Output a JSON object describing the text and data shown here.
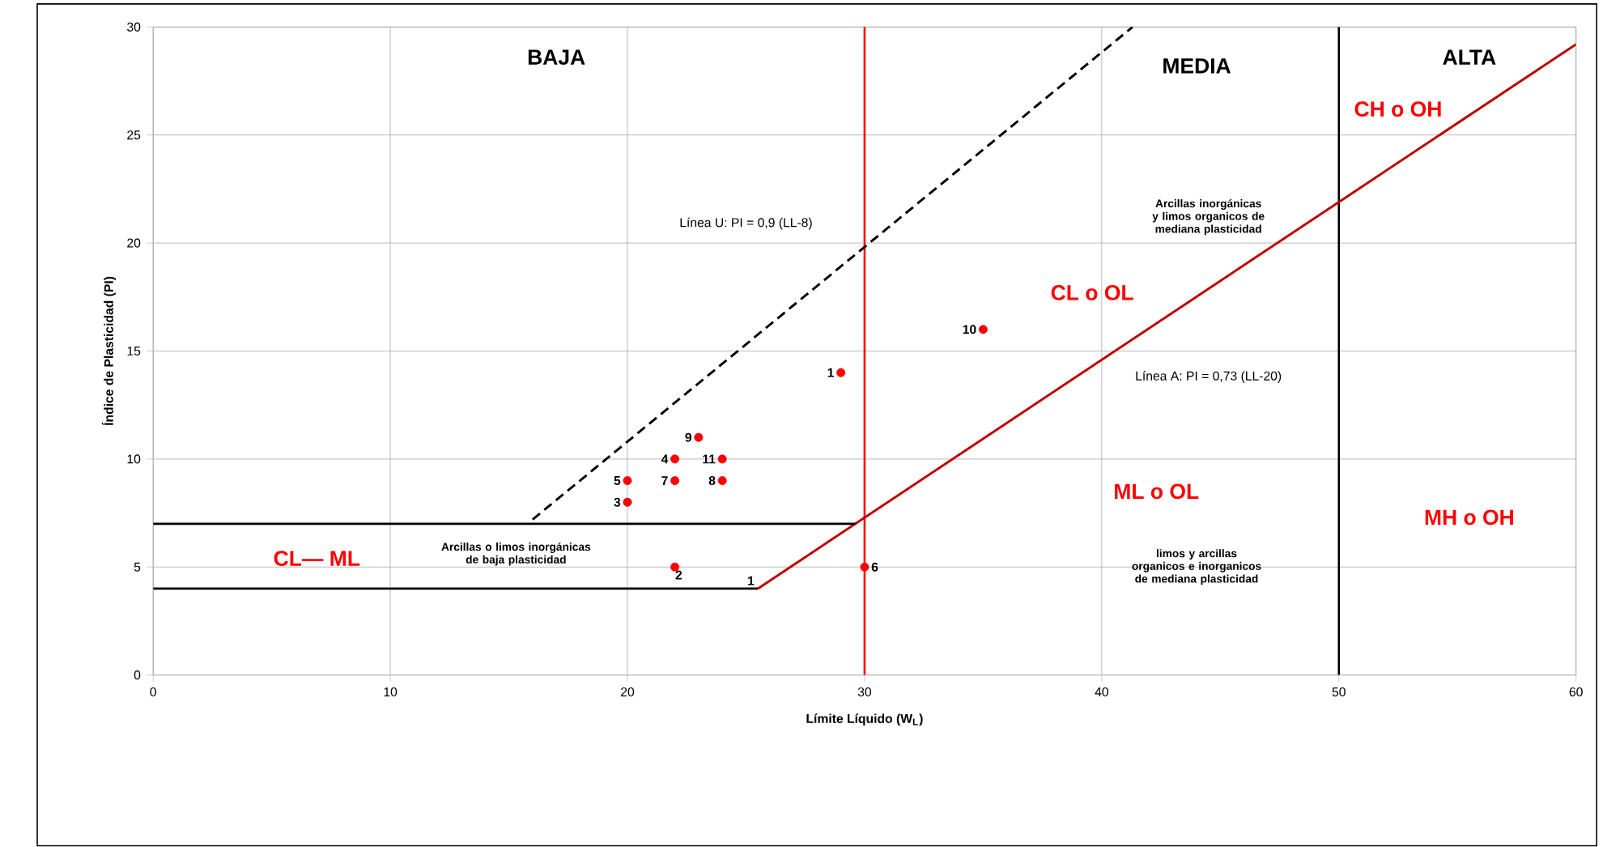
{
  "chart_data": {
    "type": "scatter",
    "xlabel": "Límite Líquido (W$_{L}$)",
    "ylabel": "Índice de Plasticidad (PI)",
    "xlim": [
      0,
      60
    ],
    "ylim": [
      0,
      30
    ],
    "xticks": [
      0,
      10,
      20,
      30,
      40,
      50,
      60
    ],
    "yticks": [
      0,
      5,
      10,
      15,
      20,
      25,
      30
    ],
    "grid": true,
    "series": [
      {
        "type": "line",
        "color": "#000000",
        "line_style": "dashed",
        "marker": "none",
        "x": [
          16,
          41.3
        ],
        "values": [
          7.2,
          30
        ]
      },
      {
        "type": "line",
        "color": "#c00000",
        "line_style": "solid",
        "marker": "none",
        "x": [
          25.5,
          60
        ],
        "values": [
          4,
          29.2
        ]
      },
      {
        "type": "line",
        "color": "#000000",
        "line_style": "solid",
        "marker": "none",
        "x": [
          0,
          29.6
        ],
        "values": [
          7,
          7
        ]
      },
      {
        "type": "line",
        "color": "#000000",
        "line_style": "solid",
        "marker": "none",
        "x": [
          0,
          25.5
        ],
        "values": [
          4,
          4
        ]
      },
      {
        "color": "#ff0000",
        "marker": "circle",
        "x": [
          29,
          22,
          20,
          22,
          20,
          30,
          22,
          24,
          23,
          35,
          24
        ],
        "values": [
          14,
          5,
          8,
          10,
          9,
          5,
          9,
          9,
          11,
          16,
          10
        ]
      }
    ],
    "ref_lines": [
      {
        "axis": "x",
        "value": 30,
        "color": "#ff0000"
      },
      {
        "axis": "x",
        "value": 50,
        "color": "#000000"
      }
    ],
    "annotations": [
      "BAJA",
      "MEDIA",
      "ALTA",
      "CH o OH",
      "CL o OL",
      "ML o OL",
      "MH o OH",
      "CL— ML",
      "Arcillas o limos inorgánicas de baja plasticidad",
      "Arcillas inorgánicas y limos organicos de mediana plasticidad",
      "limos y arcillas organicos e inorganicos de mediana plasticidad",
      "Línea U: PI = 0,9 (LL-8)",
      "Línea A: PI = 0,73 (LL-20)",
      {
        "text": "1",
        "x": 29,
        "y": 14
      },
      {
        "text": "2",
        "x": 22,
        "y": 5
      },
      {
        "text": "3",
        "x": 20,
        "y": 8
      },
      {
        "text": "4",
        "x": 22,
        "y": 10
      },
      {
        "text": "5",
        "x": 20,
        "y": 9
      },
      {
        "text": "6",
        "x": 30,
        "y": 5
      },
      {
        "text": "7",
        "x": 22,
        "y": 9
      },
      {
        "text": "8",
        "x": 24,
        "y": 9
      },
      {
        "text": "9",
        "x": 23,
        "y": 11
      },
      {
        "text": "10",
        "x": 35,
        "y": 16
      },
      {
        "text": "11",
        "x": 24,
        "y": 10
      },
      {
        "text": "1",
        "x": 25.5,
        "y": 4
      }
    ]
  }
}
